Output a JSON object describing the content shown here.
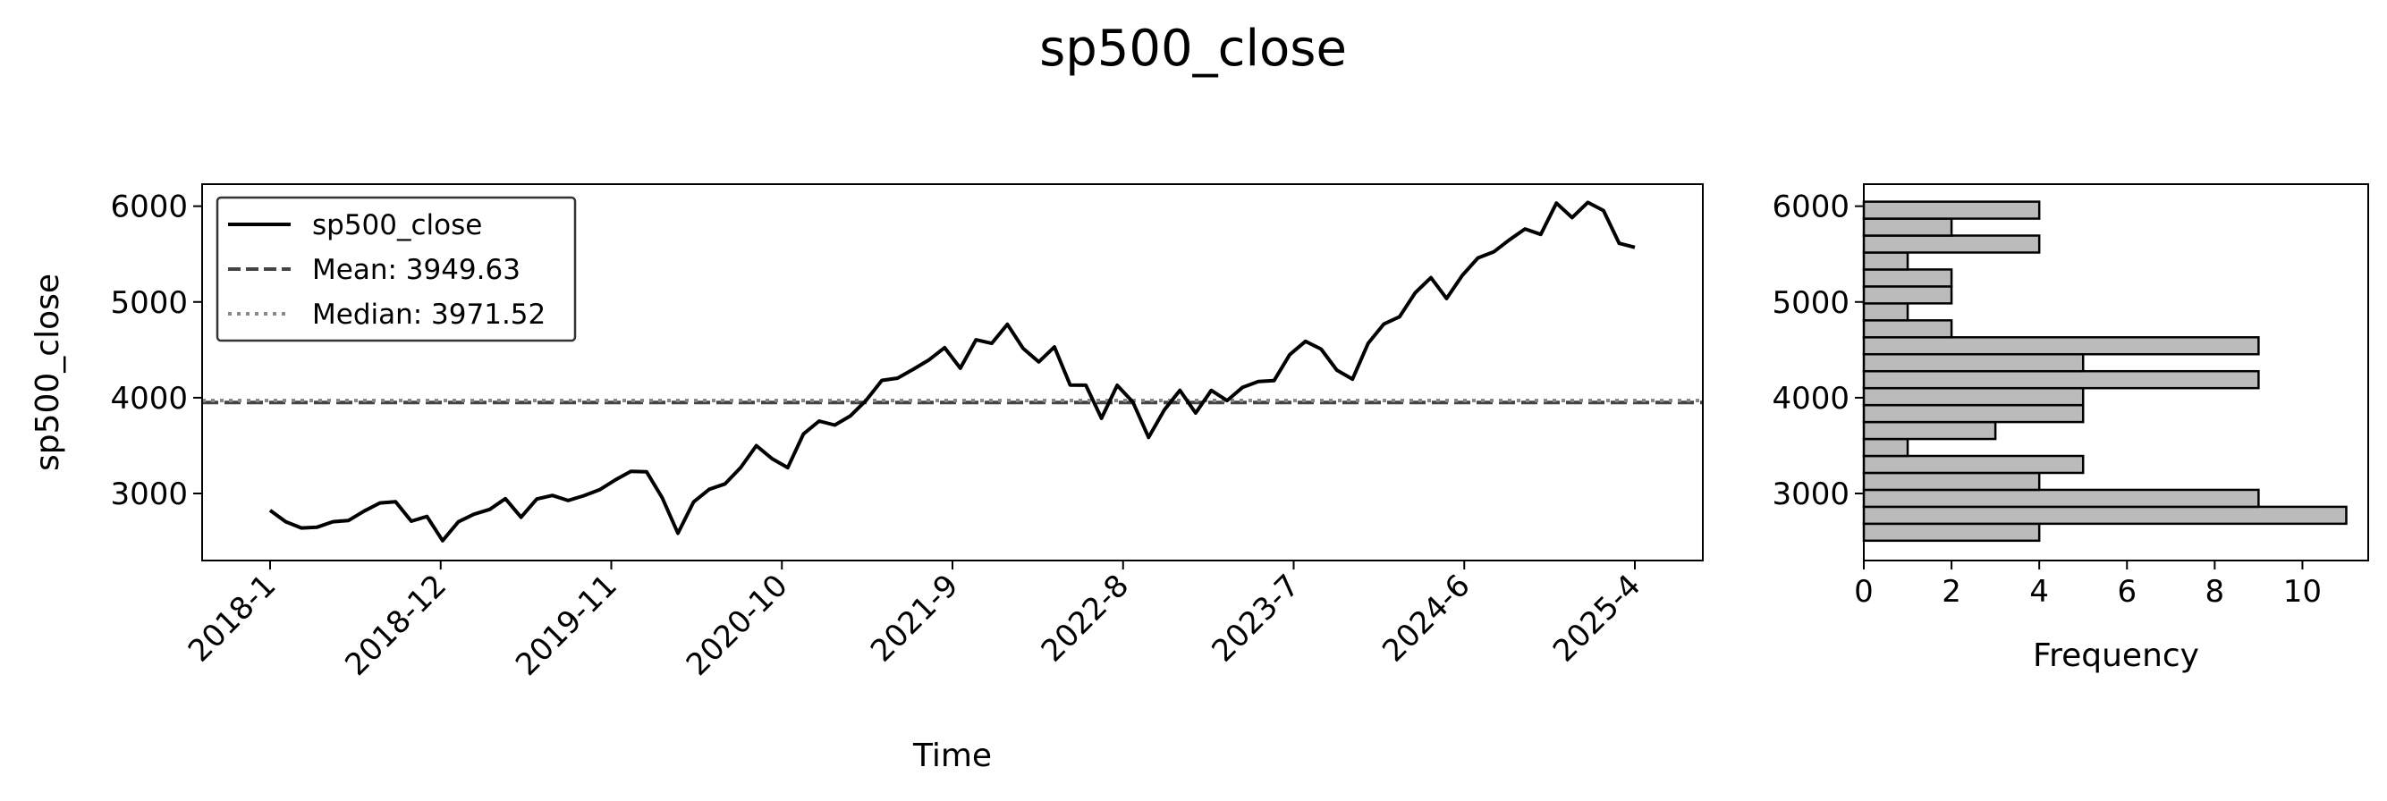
{
  "chart_data": [
    {
      "type": "line",
      "title": "sp500_close",
      "xlabel": "Time",
      "ylabel": "sp500_close",
      "ylim": [
        2300,
        6230
      ],
      "yticks": [
        3000,
        4000,
        5000,
        6000
      ],
      "x_tick_labels": [
        "2018-1",
        "2018-12",
        "2019-11",
        "2020-10",
        "2021-9",
        "2022-8",
        "2023-7",
        "2024-6",
        "2025-4"
      ],
      "x_start": "2018-1",
      "x_end": "2025-4",
      "grid": false,
      "legend_position": "upper left",
      "series": [
        {
          "name": "sp500_close",
          "style": "solid",
          "color": "#000000",
          "values": [
            2824,
            2705,
            2640,
            2648,
            2705,
            2718,
            2816,
            2901,
            2914,
            2711,
            2760,
            2507,
            2704,
            2784,
            2834,
            2946,
            2752,
            2942,
            2980,
            2926,
            2977,
            3038,
            3141,
            3231,
            3226,
            2954,
            2585,
            2912,
            3044,
            3100,
            3271,
            3500,
            3363,
            3270,
            3622,
            3756,
            3714,
            3811,
            3973,
            4181,
            4204,
            4297,
            4395,
            4523,
            4308,
            4605,
            4567,
            4766,
            4516,
            4374,
            4530,
            4132,
            4131,
            3785,
            4130,
            3955,
            3585,
            3872,
            4077,
            3840,
            4076,
            3970,
            4109,
            4169,
            4179,
            4450,
            4589,
            4508,
            4288,
            4194,
            4568,
            4770,
            4846,
            5096,
            5254,
            5036,
            5278,
            5460,
            5522,
            5648,
            5762,
            5705,
            6032,
            5881,
            6040,
            5955,
            5612,
            5570
          ]
        }
      ],
      "reference_lines": [
        {
          "label": "Mean: 3949.63",
          "value": 3949.63,
          "style": "dashed",
          "color": "#444444"
        },
        {
          "label": "Median: 3971.52",
          "value": 3971.52,
          "style": "dotted",
          "color": "#888888"
        }
      ]
    },
    {
      "type": "bar",
      "orientation": "horizontal",
      "xlabel": "Frequency",
      "ylabel": "",
      "xlim": [
        0,
        11.5
      ],
      "xticks": [
        0,
        2,
        4,
        6,
        8,
        10
      ],
      "ylim": [
        2300,
        6230
      ],
      "yticks": [
        3000,
        4000,
        5000,
        6000
      ],
      "color": "#bbbbbb",
      "bins": [
        {
          "from": 2507,
          "to": 2684,
          "count": 4
        },
        {
          "from": 2684,
          "to": 2861,
          "count": 11
        },
        {
          "from": 2861,
          "to": 3038,
          "count": 9
        },
        {
          "from": 3038,
          "to": 3215,
          "count": 4
        },
        {
          "from": 3215,
          "to": 3392,
          "count": 5
        },
        {
          "from": 3392,
          "to": 3569,
          "count": 1
        },
        {
          "from": 3569,
          "to": 3746,
          "count": 3
        },
        {
          "from": 3746,
          "to": 3923,
          "count": 5
        },
        {
          "from": 3923,
          "to": 4100,
          "count": 5
        },
        {
          "from": 4100,
          "to": 4277,
          "count": 9
        },
        {
          "from": 4277,
          "to": 4454,
          "count": 5
        },
        {
          "from": 4454,
          "to": 4631,
          "count": 9
        },
        {
          "from": 4631,
          "to": 4808,
          "count": 2
        },
        {
          "from": 4808,
          "to": 4985,
          "count": 1
        },
        {
          "from": 4985,
          "to": 5162,
          "count": 2
        },
        {
          "from": 5162,
          "to": 5339,
          "count": 2
        },
        {
          "from": 5339,
          "to": 5516,
          "count": 1
        },
        {
          "from": 5516,
          "to": 5693,
          "count": 4
        },
        {
          "from": 5693,
          "to": 5870,
          "count": 2
        },
        {
          "from": 5870,
          "to": 6047,
          "count": 4
        }
      ]
    }
  ]
}
